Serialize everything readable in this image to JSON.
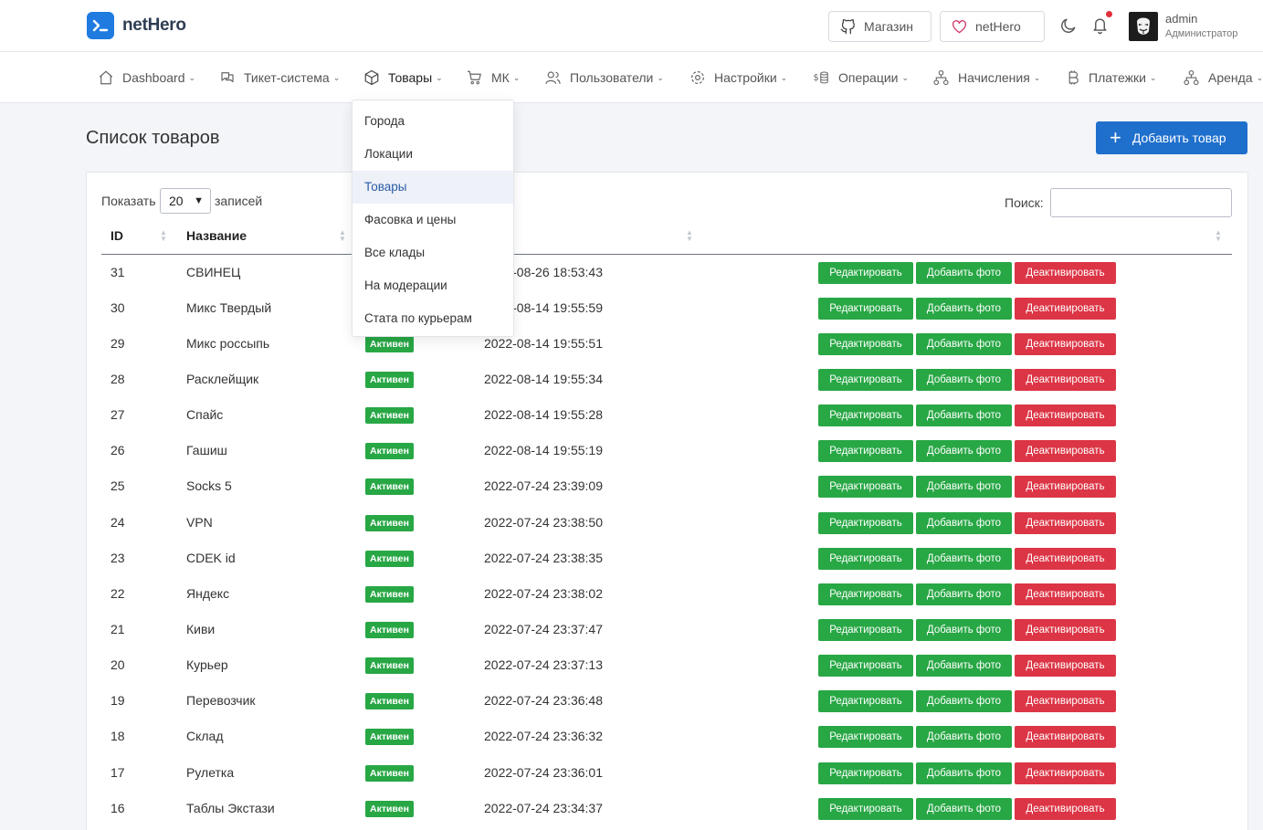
{
  "header": {
    "brand": "netHero",
    "shop_label": "Магазин",
    "nethero_label": "netHero",
    "user_name": "admin",
    "user_role": "Администратор"
  },
  "nav": [
    {
      "label": "Dashboard",
      "icon": "home-icon"
    },
    {
      "label": "Тикет-система",
      "icon": "ticket-icon"
    },
    {
      "label": "Товары",
      "icon": "box-icon"
    },
    {
      "label": "МК",
      "icon": "cart-icon"
    },
    {
      "label": "Пользователи",
      "icon": "users-icon"
    },
    {
      "label": "Настройки",
      "icon": "gear-icon"
    },
    {
      "label": "Операции",
      "icon": "dollar-icon"
    },
    {
      "label": "Начисления",
      "icon": "network-icon"
    },
    {
      "label": "Платежки",
      "icon": "bitcoin-icon"
    },
    {
      "label": "Аренда",
      "icon": "network-icon"
    }
  ],
  "dropdown": [
    "Города",
    "Локации",
    "Товары",
    "Фасовка и цены",
    "Все клады",
    "На модерации",
    "Стата по курьерам"
  ],
  "page": {
    "title": "Список товаров",
    "add_button": "Добавить товар",
    "show_label": "Показать",
    "show_value": "20",
    "records_label": "записей",
    "search_label": "Поиск:"
  },
  "table": {
    "columns": [
      "ID",
      "Название"
    ],
    "status_label": "Активен",
    "buttons": {
      "edit": "Редактировать",
      "photo": "Добавить фото",
      "deactivate": "Деактивировать"
    },
    "rows": [
      {
        "id": "31",
        "name": "СВИНЕЦ",
        "date": "2022-08-26 18:53:43"
      },
      {
        "id": "30",
        "name": "Микс Твердый",
        "date": "2022-08-14 19:55:59"
      },
      {
        "id": "29",
        "name": "Микс россыпь",
        "date": "2022-08-14 19:55:51"
      },
      {
        "id": "28",
        "name": "Расклейщик",
        "date": "2022-08-14 19:55:34"
      },
      {
        "id": "27",
        "name": "Спайс",
        "date": "2022-08-14 19:55:28"
      },
      {
        "id": "26",
        "name": "Гашиш",
        "date": "2022-08-14 19:55:19"
      },
      {
        "id": "25",
        "name": "Socks 5",
        "date": "2022-07-24 23:39:09"
      },
      {
        "id": "24",
        "name": "VPN",
        "date": "2022-07-24 23:38:50"
      },
      {
        "id": "23",
        "name": "CDEK id",
        "date": "2022-07-24 23:38:35"
      },
      {
        "id": "22",
        "name": "Яндекс",
        "date": "2022-07-24 23:38:02"
      },
      {
        "id": "21",
        "name": "Киви",
        "date": "2022-07-24 23:37:47"
      },
      {
        "id": "20",
        "name": "Курьер",
        "date": "2022-07-24 23:37:13"
      },
      {
        "id": "19",
        "name": "Перевозчик",
        "date": "2022-07-24 23:36:48"
      },
      {
        "id": "18",
        "name": "Склад",
        "date": "2022-07-24 23:36:32"
      },
      {
        "id": "17",
        "name": "Рулетка",
        "date": "2022-07-24 23:36:01"
      },
      {
        "id": "16",
        "name": "Таблы Экстази",
        "date": "2022-07-24 23:34:37"
      }
    ]
  },
  "colors": {
    "primary": "#1f6fcc",
    "success": "#28a745",
    "danger": "#dc3545"
  }
}
